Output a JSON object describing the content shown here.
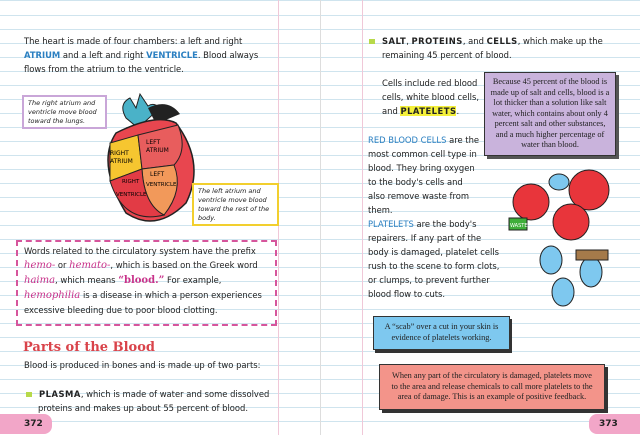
{
  "left_page": {
    "intro": {
      "t1": "The heart is made of four chambers: a left and right",
      "atrium": "ATRIUM",
      "t2": "and a left and right",
      "ventricle": "VENTRICLE",
      "t3": ". Blood always",
      "t4": "flows from the atrium to the ventricle."
    },
    "heart_labels": {
      "right_atrium": "RIGHT ATRIUM",
      "left_atrium": "LEFT ATRIUM",
      "left_ventricle": "LEFT VENTRICLE",
      "right_ventricle": "RIGHT VENTRICLE"
    },
    "callout_right": "The right atrium and ventricle move blood toward the lungs.",
    "callout_left": "The left atrium and ventricle move blood toward the rest of the body.",
    "prefix_box": {
      "t1": "Words related to the circulatory system have the prefix",
      "hemo": "hemo-",
      "or": "or",
      "hemato": "hemato-",
      "t2": ", which is based on the Greek word",
      "haima": "haima",
      "t3": ", which means",
      "blood": "“blood.”",
      "t4": "For example,",
      "hemophilia": "hemophilia",
      "t5": "is a disease in which a person experiences excessive bleeding due to poor blood clotting."
    },
    "heading": "Parts of the Blood",
    "parts_intro": "Blood is produced in bones and is made up of two parts:",
    "plasma": {
      "term": "PLASMA",
      "text": ", which is made of water and some dissolved proteins and makes up about 55 percent of blood."
    },
    "page_number": "372"
  },
  "right_page": {
    "bullet": {
      "salt": "SALT",
      "c1": ",",
      "proteins": "PROTEINS",
      "c2": ", and",
      "cells": "CELLS",
      "text": ", which make up the remaining 45 percent of blood."
    },
    "cells_include": {
      "t": "Cells include red blood cells, white blood cells, and",
      "platelets": "PLATELETS",
      "end": "."
    },
    "purple_box": "Because 45 percent of the blood is made up of salt and cells, blood is a lot thicker than a solution like salt water, which contains about only 4 percent salt and other substances, and a much higher percentage of water than blood.",
    "rbc": {
      "term": "RED BLOOD CELLS",
      "text": "are the most common cell type in blood. They bring oxygen to the body's cells and also remove waste from them."
    },
    "platelets": {
      "term": "PLATELETS",
      "text": "are the body's repairers. If any part of the body is damaged, platelet cells rush to the scene to form clots, or clumps, to prevent further blood flow to cuts."
    },
    "illustration_label": "WASTE",
    "blue_box": "A “scab” over a cut in your skin is evidence of platelets working.",
    "red_box": "When any part of the circulatory is damaged, platelets move to the area and release chemicals to call more platelets to the area of damage. This is an example of positive feedback.",
    "page_number": "373"
  },
  "colors": {
    "blue_term": "#2a7fc1",
    "pink": "#c8328a",
    "heading": "#d9434a",
    "purple_box": "#c9b3dc",
    "blue_box": "#7ec8ef",
    "red_box": "#f3948a",
    "highlight": "#f4f03a"
  }
}
